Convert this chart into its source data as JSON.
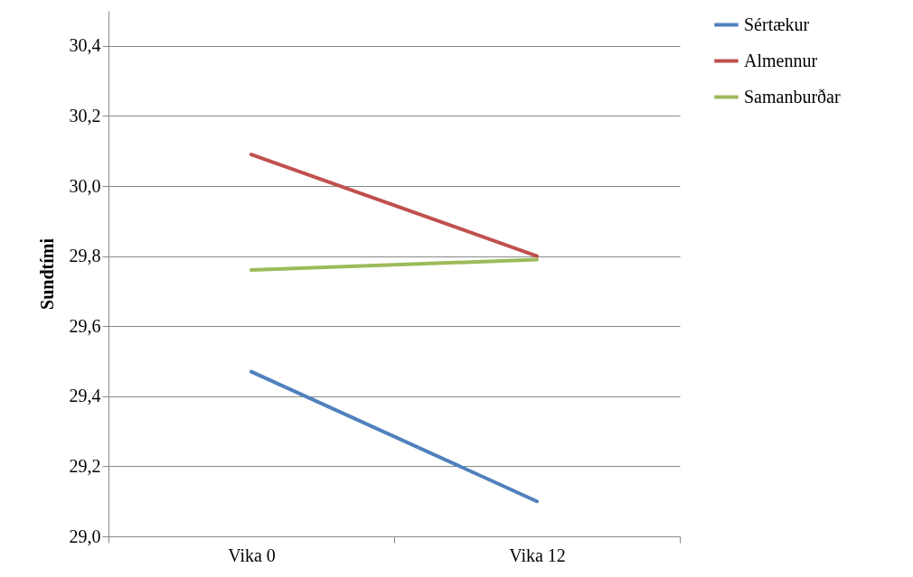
{
  "chart_data": {
    "type": "line",
    "ylabel": "Sundtími",
    "categories": [
      "Vika 0",
      "Vika 12"
    ],
    "series": [
      {
        "name": "Sértækur",
        "color": "#4f81bd",
        "values": [
          29.47,
          29.1
        ]
      },
      {
        "name": "Almennur",
        "color": "#c0504d",
        "values": [
          30.09,
          29.8
        ]
      },
      {
        "name": "Samanburðar",
        "color": "#9bbb59",
        "values": [
          29.76,
          29.79
        ]
      }
    ],
    "ylim": [
      29.0,
      30.5
    ],
    "yticks": [
      {
        "value": 29.0,
        "label": "29,0"
      },
      {
        "value": 29.2,
        "label": "29,2"
      },
      {
        "value": 29.4,
        "label": "29,4"
      },
      {
        "value": 29.6,
        "label": "29,6"
      },
      {
        "value": 29.8,
        "label": "29,8"
      },
      {
        "value": 30.0,
        "label": "30,0"
      },
      {
        "value": 30.2,
        "label": "30,2"
      },
      {
        "value": 30.4,
        "label": "30,4"
      }
    ],
    "grid": "y",
    "legend": "right",
    "marker": "none",
    "line_style": "solid"
  }
}
